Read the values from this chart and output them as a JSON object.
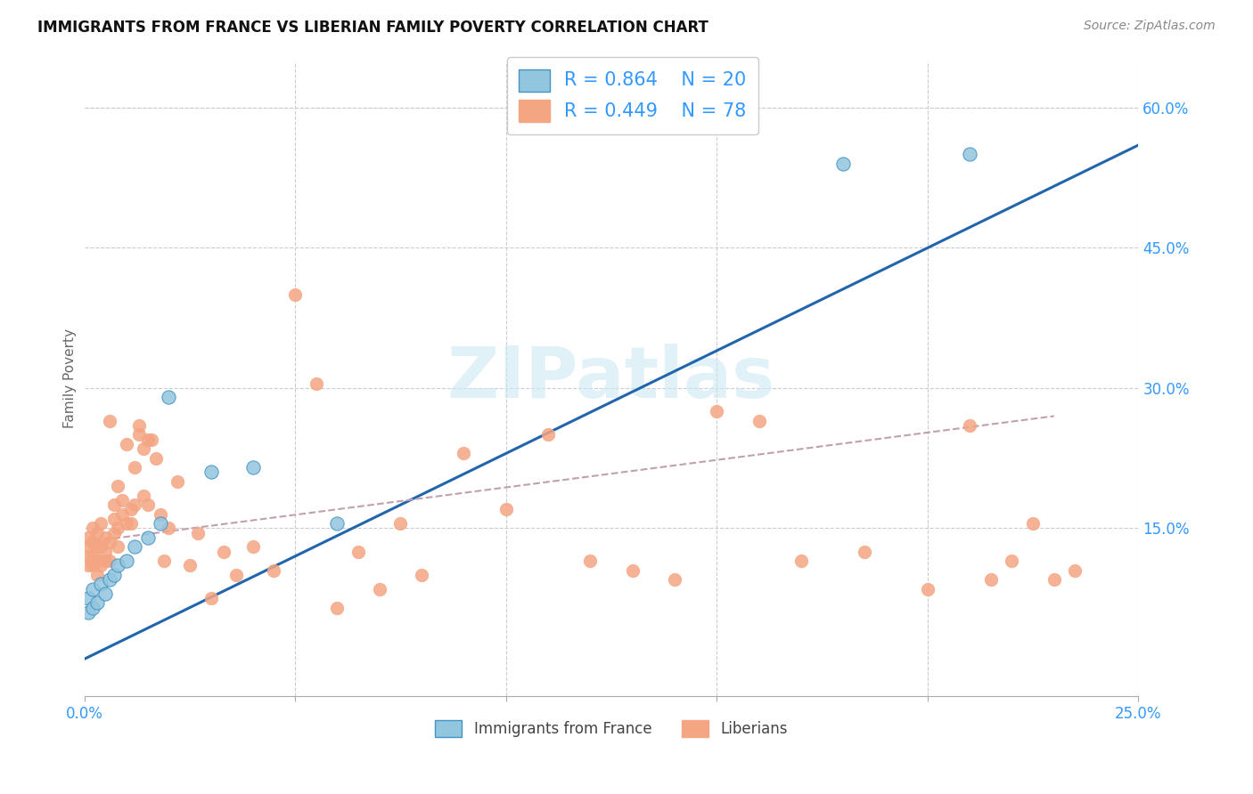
{
  "title": "IMMIGRANTS FROM FRANCE VS LIBERIAN FAMILY POVERTY CORRELATION CHART",
  "source": "Source: ZipAtlas.com",
  "ylabel": "Family Poverty",
  "ylabel_right_ticks": [
    "15.0%",
    "30.0%",
    "45.0%",
    "60.0%"
  ],
  "ylabel_right_vals": [
    0.15,
    0.3,
    0.45,
    0.6
  ],
  "xlim": [
    0.0,
    0.25
  ],
  "ylim": [
    -0.03,
    0.65
  ],
  "watermark": "ZIPatlas",
  "legend_blue_R": "R = 0.864",
  "legend_blue_N": "N = 20",
  "legend_pink_R": "R = 0.449",
  "legend_pink_N": "N = 78",
  "legend_label_blue": "Immigrants from France",
  "legend_label_pink": "Liberians",
  "blue_scatter_color": "#92c5de",
  "blue_edge_color": "#4393c3",
  "pink_scatter_color": "#f4a582",
  "pink_edge_color": "#d6604d",
  "line_blue_color": "#2166ac",
  "line_pink_color": "#b2182b",
  "text_color": "#3399ff",
  "grid_color": "#cccccc",
  "background_color": "#ffffff",
  "blue_scatter_x": [
    0.001,
    0.001,
    0.002,
    0.002,
    0.003,
    0.004,
    0.005,
    0.006,
    0.007,
    0.008,
    0.01,
    0.012,
    0.015,
    0.018,
    0.02,
    0.03,
    0.04,
    0.06,
    0.18,
    0.21
  ],
  "blue_scatter_y": [
    0.06,
    0.075,
    0.065,
    0.085,
    0.07,
    0.09,
    0.08,
    0.095,
    0.1,
    0.11,
    0.115,
    0.13,
    0.14,
    0.155,
    0.29,
    0.21,
    0.215,
    0.155,
    0.54,
    0.55
  ],
  "pink_scatter_x": [
    0.001,
    0.001,
    0.001,
    0.001,
    0.002,
    0.002,
    0.002,
    0.002,
    0.003,
    0.003,
    0.003,
    0.003,
    0.004,
    0.004,
    0.004,
    0.005,
    0.005,
    0.005,
    0.006,
    0.006,
    0.006,
    0.007,
    0.007,
    0.007,
    0.008,
    0.008,
    0.008,
    0.009,
    0.009,
    0.01,
    0.01,
    0.011,
    0.011,
    0.012,
    0.012,
    0.013,
    0.013,
    0.014,
    0.014,
    0.015,
    0.015,
    0.016,
    0.017,
    0.018,
    0.019,
    0.02,
    0.022,
    0.025,
    0.027,
    0.03,
    0.033,
    0.036,
    0.04,
    0.045,
    0.05,
    0.055,
    0.06,
    0.065,
    0.07,
    0.075,
    0.08,
    0.09,
    0.1,
    0.11,
    0.12,
    0.13,
    0.14,
    0.15,
    0.16,
    0.17,
    0.185,
    0.2,
    0.21,
    0.215,
    0.22,
    0.225,
    0.23,
    0.235
  ],
  "pink_scatter_y": [
    0.12,
    0.13,
    0.11,
    0.14,
    0.11,
    0.12,
    0.135,
    0.15,
    0.1,
    0.115,
    0.13,
    0.145,
    0.11,
    0.13,
    0.155,
    0.115,
    0.125,
    0.14,
    0.115,
    0.135,
    0.265,
    0.145,
    0.16,
    0.175,
    0.13,
    0.15,
    0.195,
    0.165,
    0.18,
    0.155,
    0.24,
    0.155,
    0.17,
    0.175,
    0.215,
    0.25,
    0.26,
    0.185,
    0.235,
    0.175,
    0.245,
    0.245,
    0.225,
    0.165,
    0.115,
    0.15,
    0.2,
    0.11,
    0.145,
    0.075,
    0.125,
    0.1,
    0.13,
    0.105,
    0.4,
    0.305,
    0.065,
    0.125,
    0.085,
    0.155,
    0.1,
    0.23,
    0.17,
    0.25,
    0.115,
    0.105,
    0.095,
    0.275,
    0.265,
    0.115,
    0.125,
    0.085,
    0.26,
    0.095,
    0.115,
    0.155,
    0.095,
    0.105
  ],
  "blue_line_x": [
    0.0,
    0.25
  ],
  "blue_line_y": [
    0.01,
    0.56
  ],
  "pink_line_x": [
    0.0,
    0.23
  ],
  "pink_line_y": [
    0.135,
    0.27
  ],
  "x_tick_positions": [
    0.0,
    0.05,
    0.1,
    0.15,
    0.2,
    0.25
  ],
  "x_tick_labels": [
    "0.0%",
    "",
    "",
    "",
    "",
    "25.0%"
  ]
}
